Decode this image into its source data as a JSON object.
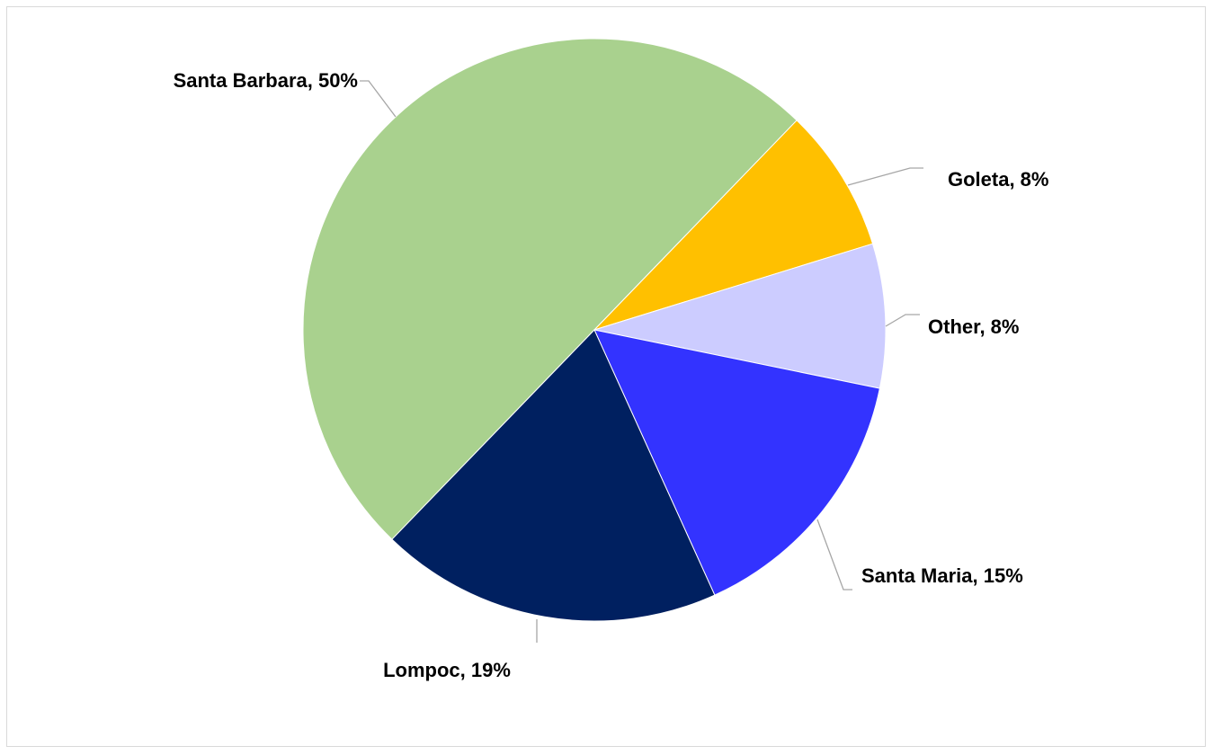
{
  "chart_data": {
    "type": "pie",
    "title": "",
    "slices": [
      {
        "label": "Santa Barbara",
        "value": 50,
        "display": "Santa Barbara, 50%",
        "color": "#a9d18e"
      },
      {
        "label": "Goleta",
        "value": 8,
        "display": "Goleta, 8%",
        "color": "#ffc000"
      },
      {
        "label": "Other",
        "value": 8,
        "display": "Other, 8%",
        "color": "#ccccff"
      },
      {
        "label": "Santa Maria",
        "value": 15,
        "display": "Santa Maria, 15%",
        "color": "#3333ff"
      },
      {
        "label": "Lompoc",
        "value": 19,
        "display": "Lompoc, 19%",
        "color": "#002060"
      }
    ],
    "legend": "none",
    "data_labels": "outside-with-leader-lines",
    "start_angle_deg": 224,
    "direction": "clockwise"
  }
}
